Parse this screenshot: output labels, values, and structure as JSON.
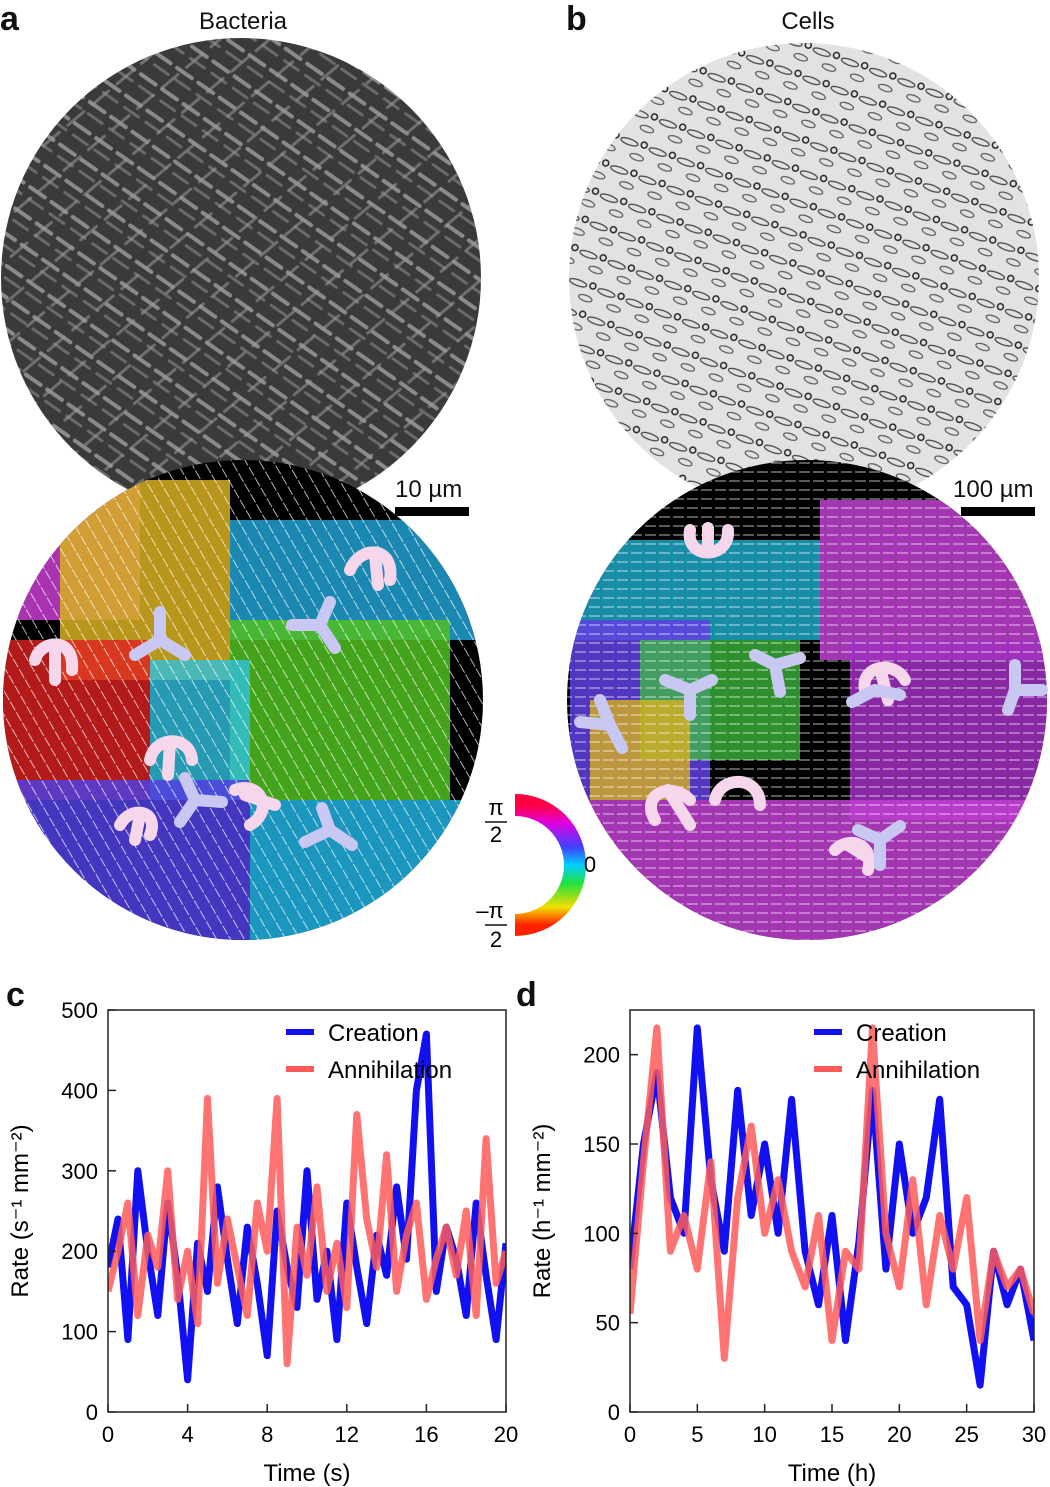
{
  "panels": {
    "a": {
      "letter": "a",
      "title": "Bacteria",
      "scale_bar": "10 µm"
    },
    "b": {
      "letter": "b",
      "title": "Cells",
      "scale_bar": "100 µm"
    },
    "c": {
      "letter": "c"
    },
    "d": {
      "letter": "d"
    }
  },
  "colorwheel": {
    "top": "π",
    "top_den": "2",
    "right": "0",
    "bottom": "–π",
    "bottom_den": "2"
  },
  "colors": {
    "creation": "#1010f0",
    "annihilation": "#ff5a5a",
    "overlap": "#b0004a"
  },
  "chart_data": [
    {
      "type": "line",
      "panel": "c",
      "xlabel": "Time (s)",
      "ylabel": "Rate (s⁻¹ mm⁻²)",
      "xlim": [
        0,
        20
      ],
      "ylim": [
        0,
        500
      ],
      "xticks": [
        0,
        4,
        8,
        12,
        16,
        20
      ],
      "yticks": [
        0,
        100,
        200,
        300,
        400,
        500
      ],
      "legend_position": "top-right",
      "series": [
        {
          "name": "Creation",
          "x": [
            0,
            0.5,
            1,
            1.5,
            2,
            2.5,
            3,
            3.5,
            4,
            4.5,
            5,
            5.5,
            6,
            6.5,
            7,
            7.5,
            8,
            8.5,
            9,
            9.5,
            10,
            10.5,
            11,
            11.5,
            12,
            12.5,
            13,
            13.5,
            14,
            14.5,
            15,
            15.5,
            16,
            16.5,
            17,
            17.5,
            18,
            18.5,
            19,
            19.5,
            20
          ],
          "y": [
            180,
            240,
            90,
            300,
            200,
            120,
            260,
            170,
            40,
            210,
            150,
            280,
            190,
            110,
            230,
            160,
            70,
            250,
            180,
            130,
            300,
            140,
            200,
            90,
            260,
            180,
            110,
            220,
            170,
            280,
            190,
            400,
            470,
            150,
            230,
            190,
            120,
            260,
            170,
            90,
            210
          ]
        },
        {
          "name": "Annihilation",
          "x": [
            0,
            0.5,
            1,
            1.5,
            2,
            2.5,
            3,
            3.5,
            4,
            4.5,
            5,
            5.5,
            6,
            6.5,
            7,
            7.5,
            8,
            8.5,
            9,
            9.5,
            10,
            10.5,
            11,
            11.5,
            12,
            12.5,
            13,
            13.5,
            14,
            14.5,
            15,
            15.5,
            16,
            16.5,
            17,
            17.5,
            18,
            18.5,
            19,
            19.5,
            20
          ],
          "y": [
            150,
            200,
            260,
            120,
            220,
            180,
            300,
            140,
            200,
            110,
            390,
            160,
            240,
            180,
            120,
            260,
            200,
            390,
            60,
            230,
            170,
            280,
            150,
            210,
            130,
            370,
            240,
            180,
            320,
            150,
            220,
            260,
            140,
            190,
            230,
            170,
            250,
            120,
            340,
            160,
            200
          ]
        }
      ]
    },
    {
      "type": "line",
      "panel": "d",
      "xlabel": "Time (h)",
      "ylabel": "Rate (h⁻¹ mm⁻²)",
      "xlim": [
        0,
        30
      ],
      "ylim": [
        0,
        225
      ],
      "xticks": [
        0,
        5,
        10,
        15,
        20,
        25,
        30
      ],
      "yticks": [
        0,
        50,
        100,
        150,
        200
      ],
      "legend_position": "top-right",
      "series": [
        {
          "name": "Creation",
          "x": [
            0,
            1,
            2,
            3,
            4,
            5,
            6,
            7,
            8,
            9,
            10,
            11,
            12,
            13,
            14,
            15,
            16,
            17,
            18,
            19,
            20,
            21,
            22,
            23,
            24,
            25,
            26,
            27,
            28,
            29,
            30
          ],
          "y": [
            80,
            150,
            190,
            120,
            100,
            215,
            130,
            90,
            180,
            110,
            150,
            100,
            175,
            90,
            60,
            110,
            40,
            95,
            180,
            80,
            150,
            100,
            120,
            175,
            70,
            60,
            15,
            90,
            60,
            80,
            40
          ]
        },
        {
          "name": "Annihilation",
          "x": [
            0,
            1,
            2,
            3,
            4,
            5,
            6,
            7,
            8,
            9,
            10,
            11,
            12,
            13,
            14,
            15,
            16,
            17,
            18,
            19,
            20,
            21,
            22,
            23,
            24,
            25,
            26,
            27,
            28,
            29,
            30
          ],
          "y": [
            55,
            140,
            215,
            90,
            110,
            80,
            140,
            30,
            120,
            160,
            100,
            130,
            90,
            70,
            110,
            40,
            90,
            80,
            215,
            100,
            70,
            130,
            60,
            110,
            80,
            120,
            40,
            90,
            70,
            80,
            55
          ]
        }
      ]
    }
  ]
}
